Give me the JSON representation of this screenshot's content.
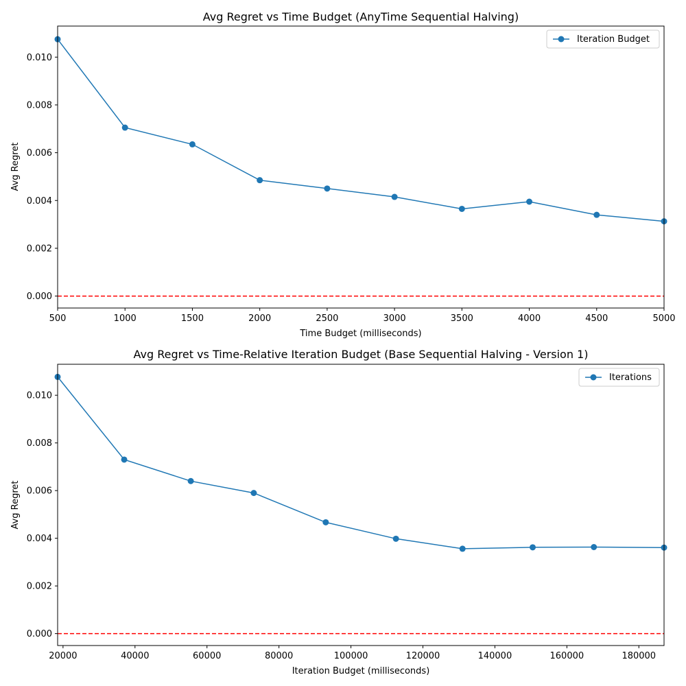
{
  "chart_data": [
    {
      "type": "line",
      "title": "Avg Regret vs Time Budget (AnyTime Sequential Halving)",
      "xlabel": "Time Budget (milliseconds)",
      "ylabel": "Avg Regret",
      "xlim": [
        500,
        5000
      ],
      "ylim": [
        -0.0005,
        0.0113
      ],
      "x_ticks": [
        "500",
        "1000",
        "1500",
        "2000",
        "2500",
        "3000",
        "3500",
        "4000",
        "4500",
        "5000"
      ],
      "y_ticks": [
        "0.000",
        "0.002",
        "0.004",
        "0.006",
        "0.008",
        "0.010"
      ],
      "grid": false,
      "legend_position": "upper right",
      "series": [
        {
          "name": "Iteration Budget",
          "color": "#1f77b4",
          "marker": "circle",
          "x": [
            500,
            1000,
            1500,
            2000,
            2500,
            3000,
            3500,
            4000,
            4500,
            5000
          ],
          "values": [
            0.01075,
            0.00705,
            0.00635,
            0.00485,
            0.0045,
            0.00415,
            0.00365,
            0.00395,
            0.0034,
            0.00313
          ]
        }
      ],
      "reference_line": {
        "y": 0,
        "color": "#ff0000",
        "style": "dashed"
      }
    },
    {
      "type": "line",
      "title": "Avg Regret vs Time-Relative Iteration Budget (Base Sequential Halving - Version 1)",
      "xlabel": "Iteration Budget (milliseconds)",
      "ylabel": "Avg Regret",
      "xlim": [
        18500,
        187000
      ],
      "ylim": [
        -0.0005,
        0.0113
      ],
      "x_ticks": [
        "20000",
        "40000",
        "60000",
        "80000",
        "100000",
        "120000",
        "140000",
        "160000",
        "180000"
      ],
      "y_ticks": [
        "0.000",
        "0.002",
        "0.004",
        "0.006",
        "0.008",
        "0.010"
      ],
      "grid": false,
      "legend_position": "upper right",
      "series": [
        {
          "name": "Iterations",
          "color": "#1f77b4",
          "marker": "circle",
          "x": [
            18500,
            37000,
            55500,
            73000,
            93000,
            112500,
            131000,
            150500,
            167500,
            187000
          ],
          "values": [
            0.01077,
            0.0073,
            0.0064,
            0.0059,
            0.00467,
            0.00398,
            0.00356,
            0.00362,
            0.00363,
            0.00361
          ]
        }
      ],
      "reference_line": {
        "y": 0,
        "color": "#ff0000",
        "style": "dashed"
      }
    }
  ]
}
